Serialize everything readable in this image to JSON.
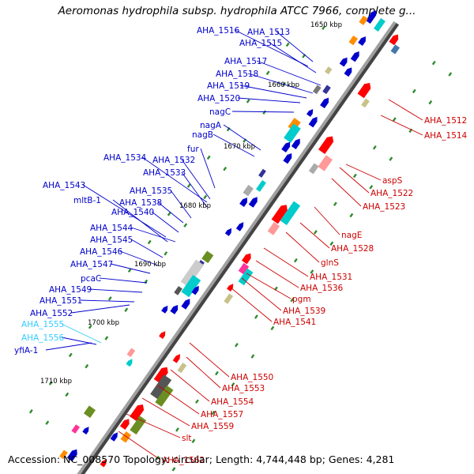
{
  "title": "Aeromonas hydrophila subsp. hydrophila ATCC 7966, complete g...",
  "footer": "Accession: NC_008570 Topology: circular; Length: 4,744,448 bp; Genes: 4,281",
  "colors": {
    "left_label": "#0000cc",
    "left_label_cyan": "#33ccff",
    "right_label": "#cc0000",
    "backbone": "#808080"
  },
  "ticks": [
    "1650 kbp",
    "1660 kbp",
    "1670 kbp",
    "1680 kbp",
    "1690 kbp",
    "1700 kbp",
    "1710 kbp"
  ],
  "left_labels": [
    {
      "text": "AHA_1516",
      "color": "blue"
    },
    {
      "text": "AHA_1513",
      "color": "blue"
    },
    {
      "text": "AHA_1515",
      "color": "blue"
    },
    {
      "text": "AHA_1517",
      "color": "blue"
    },
    {
      "text": "AHA_1518",
      "color": "blue"
    },
    {
      "text": "AHA_1519",
      "color": "blue"
    },
    {
      "text": "AHA_1520",
      "color": "blue"
    },
    {
      "text": "nagC",
      "color": "blue"
    },
    {
      "text": "nagA",
      "color": "blue"
    },
    {
      "text": "nagB",
      "color": "blue"
    },
    {
      "text": "fur",
      "color": "blue"
    },
    {
      "text": "AHA_1534",
      "color": "blue"
    },
    {
      "text": "AHA_1532",
      "color": "blue"
    },
    {
      "text": "AHA_1533",
      "color": "blue"
    },
    {
      "text": "AHA_1543",
      "color": "blue"
    },
    {
      "text": "AHA_1535",
      "color": "blue"
    },
    {
      "text": "mltB-1",
      "color": "blue"
    },
    {
      "text": "AHA_1538",
      "color": "blue"
    },
    {
      "text": "AHA_1540",
      "color": "blue"
    },
    {
      "text": "AHA_1544",
      "color": "blue"
    },
    {
      "text": "AHA_1545",
      "color": "blue"
    },
    {
      "text": "AHA_1546",
      "color": "blue"
    },
    {
      "text": "AHA_1547",
      "color": "blue"
    },
    {
      "text": "pcaC",
      "color": "blue"
    },
    {
      "text": "AHA_1549",
      "color": "blue"
    },
    {
      "text": "AHA_1551",
      "color": "blue"
    },
    {
      "text": "AHA_1552",
      "color": "blue"
    },
    {
      "text": "AHA_1555",
      "color": "cyan"
    },
    {
      "text": "AHA_1556",
      "color": "cyan"
    },
    {
      "text": "yfiA-1",
      "color": "blue"
    }
  ],
  "right_labels": [
    "AHA_1512",
    "AHA_1514",
    "aspS",
    "AHA_1522",
    "AHA_1523",
    "nagE",
    "AHA_1528",
    "glnS",
    "AHA_1531",
    "AHA_1536",
    "pgm",
    "AHA_1539",
    "AHA_1541",
    "AHA_1550",
    "AHA_1553",
    "AHA_1554",
    "AHA_1557",
    "AHA_1559",
    "slt",
    "AHA_1562"
  ]
}
